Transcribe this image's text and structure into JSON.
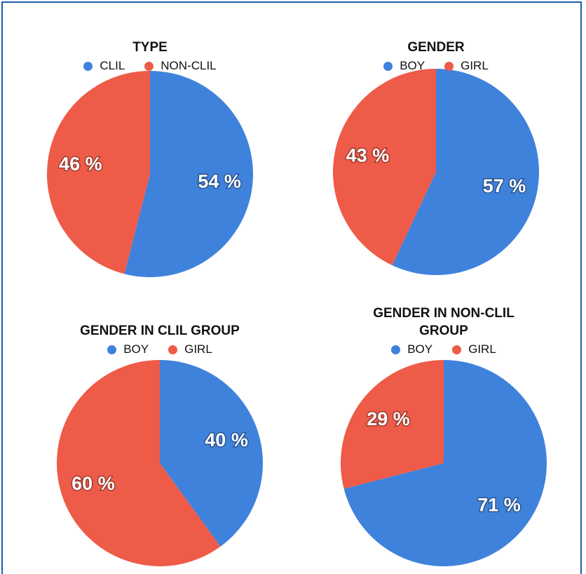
{
  "chart_data": [
    {
      "type": "pie",
      "title": "TYPE",
      "categories": [
        "CLIL",
        "NON-CLIL"
      ],
      "values": [
        54,
        46
      ],
      "value_labels": [
        "54 %",
        "46 %"
      ],
      "colors": [
        "#3f82dc",
        "#ee5b48"
      ]
    },
    {
      "type": "pie",
      "title": "GENDER",
      "categories": [
        "BOY",
        "GIRL"
      ],
      "values": [
        57,
        43
      ],
      "value_labels": [
        "57 %",
        "43 %"
      ],
      "colors": [
        "#3f82dc",
        "#ee5b48"
      ]
    },
    {
      "type": "pie",
      "title": "GENDER IN CLIL GROUP",
      "categories": [
        "BOY",
        "GIRL"
      ],
      "values": [
        40,
        60
      ],
      "value_labels": [
        "40 %",
        "60 %"
      ],
      "colors": [
        "#3f82dc",
        "#ee5b48"
      ]
    },
    {
      "type": "pie",
      "title": "GENDER IN NON-CLIL GROUP",
      "categories": [
        "BOY",
        "GIRL"
      ],
      "values": [
        71,
        29
      ],
      "value_labels": [
        "71 %",
        "29 %"
      ],
      "colors": [
        "#3f82dc",
        "#ee5b48"
      ]
    }
  ]
}
